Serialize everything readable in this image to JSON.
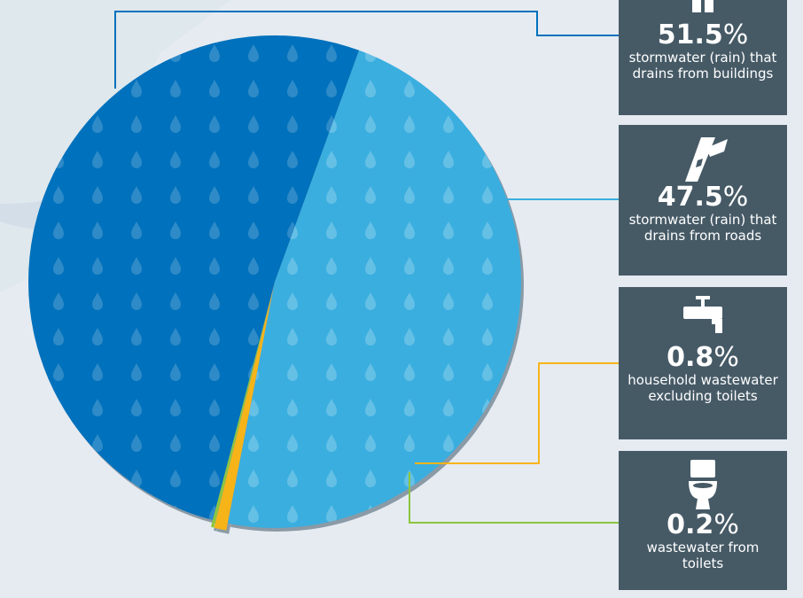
{
  "chart_data": {
    "type": "pie",
    "title": "",
    "slices": [
      {
        "value_label": "51.5",
        "unit": "%",
        "value": 51.5,
        "label": "stormwater (rain) that drains from buildings",
        "color": "#0071bc",
        "icon": "building-icon"
      },
      {
        "value_label": "47.5",
        "unit": "%",
        "value": 47.5,
        "label": "stormwater (rain) that drains from roads",
        "color": "#3aaedf",
        "icon": "road-icon"
      },
      {
        "value_label": "0.8",
        "unit": "%",
        "value": 0.8,
        "label": "household wastewater excluding toilets",
        "color": "#f7b418",
        "icon": "faucet-icon"
      },
      {
        "value_label": "0.2",
        "unit": "%",
        "value": 0.2,
        "label": "wastewater from toilets",
        "color": "#8cc63f",
        "icon": "toilet-icon"
      }
    ]
  },
  "colors": {
    "card_background": "#465a66",
    "card_text": "#ffffff",
    "page_background": "#e6ebf1",
    "slice_shadow": "#8a9aa6",
    "raindrop": "#ffffff"
  }
}
